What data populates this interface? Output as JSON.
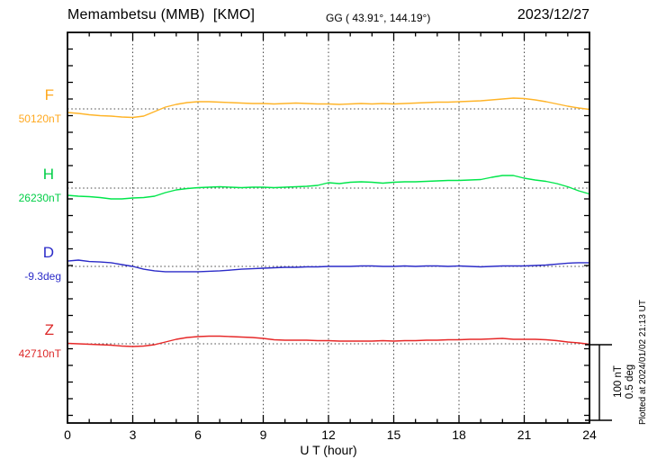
{
  "header": {
    "station_title": "Memambetsu (MMB)  [KMO]",
    "geographic_coords": "GG ( 43.91°, 144.19°)",
    "date": "2023/12/27"
  },
  "xaxis": {
    "label": "U T (hour)",
    "tick_values": [
      0,
      3,
      6,
      9,
      12,
      15,
      18,
      21,
      24
    ],
    "tick_labels": [
      "0",
      "3",
      "6",
      "9",
      "12",
      "15",
      "18",
      "21",
      "24"
    ],
    "min": 0,
    "max": 24
  },
  "scale_bar": {
    "line1": "100 nT",
    "line2": "0.5 deg"
  },
  "footer_note": "Plotted at 2024/01/02 21:13 UT",
  "components": [
    {
      "id": "F",
      "label": "F",
      "value_label": "50120nT",
      "color": "#FFA81E"
    },
    {
      "id": "H",
      "label": "H",
      "value_label": "26230nT",
      "color": "#00CE46"
    },
    {
      "id": "D",
      "label": "D",
      "value_label": "-9.3deg",
      "color": "#2B2BC8"
    },
    {
      "id": "Z",
      "label": "Z",
      "value_label": "42710nT",
      "color": "#DC2828"
    }
  ],
  "chart_data": {
    "type": "line",
    "title": "Memambetsu (MMB) [KMO] magnetogram, 2023/12/27",
    "xlabel": "U T (hour)",
    "xlim": [
      0,
      24
    ],
    "x_ticks": [
      0,
      3,
      6,
      9,
      12,
      15,
      18,
      21,
      24
    ],
    "grid": "vertical dotted every 3 h, dotted horizontal baseline per trace",
    "legend_position": "left margin labels",
    "scale": {
      "nT_per_division": 100,
      "deg_per_division": 0.5
    },
    "x": [
      0,
      0.5,
      1,
      1.5,
      2,
      2.5,
      3,
      3.5,
      4,
      4.5,
      5,
      5.5,
      6,
      6.5,
      7,
      7.5,
      8,
      8.5,
      9,
      9.5,
      10,
      10.5,
      11,
      11.5,
      12,
      12.5,
      13,
      13.5,
      14,
      14.5,
      15,
      15.5,
      16,
      16.5,
      17,
      17.5,
      18,
      18.5,
      19,
      19.5,
      20,
      20.5,
      21,
      21.5,
      22,
      22.5,
      23,
      23.5,
      24
    ],
    "series": [
      {
        "name": "F",
        "unit": "nT",
        "baseline_value": 50120,
        "baseline_label": "50120nT",
        "color": "#FFB428",
        "delta": [
          -4.7,
          -5.9,
          -7.6,
          -8.8,
          -9.4,
          -10.6,
          -11.2,
          -9.4,
          -3.5,
          2.4,
          5.9,
          8.2,
          9.4,
          9.4,
          8.8,
          8.2,
          7.6,
          7.1,
          7.1,
          6.5,
          7.1,
          7.6,
          7.1,
          6.5,
          6.5,
          5.9,
          6.5,
          7.1,
          6.5,
          7.1,
          6.5,
          7.1,
          7.6,
          8.2,
          8.8,
          8.8,
          9.4,
          10.0,
          10.6,
          11.8,
          12.9,
          14.1,
          13.5,
          11.8,
          9.4,
          6.5,
          3.5,
          1.2,
          -0.6
        ]
      },
      {
        "name": "H",
        "unit": "nT",
        "baseline_value": 26230,
        "baseline_label": "26230nT",
        "color": "#00E64B",
        "delta": [
          -9.4,
          -10.6,
          -11.2,
          -12.4,
          -14.1,
          -14.1,
          -12.9,
          -12.4,
          -10.6,
          -5.9,
          -2.4,
          -0.6,
          0.6,
          1.2,
          1.8,
          1.2,
          0.6,
          1.2,
          1.2,
          0.6,
          1.2,
          1.8,
          2.4,
          3.5,
          7.1,
          5.9,
          7.6,
          8.2,
          7.6,
          6.5,
          7.6,
          8.2,
          8.2,
          8.8,
          9.4,
          10.0,
          10.0,
          10.6,
          11.2,
          14.1,
          16.5,
          16.5,
          12.9,
          10.6,
          8.8,
          5.9,
          1.8,
          -3.5,
          -7.6
        ]
      },
      {
        "name": "D",
        "unit": "deg",
        "baseline_value": -9.3,
        "baseline_label": "-9.3deg",
        "color": "#2B2BC8",
        "delta": [
          0.035,
          0.041,
          0.032,
          0.029,
          0.024,
          0.012,
          0.0,
          -0.018,
          -0.029,
          -0.035,
          -0.035,
          -0.035,
          -0.035,
          -0.032,
          -0.029,
          -0.024,
          -0.018,
          -0.015,
          -0.012,
          -0.009,
          -0.006,
          -0.006,
          -0.003,
          -0.003,
          0.0,
          0.0,
          0.0,
          0.003,
          0.003,
          0.0,
          0.0,
          0.003,
          0.0,
          0.003,
          0.003,
          0.0,
          0.003,
          0.0,
          -0.003,
          0.0,
          0.003,
          0.003,
          0.003,
          0.006,
          0.009,
          0.015,
          0.021,
          0.024,
          0.024
        ]
      },
      {
        "name": "Z",
        "unit": "nT",
        "baseline_value": 42710,
        "baseline_label": "42710nT",
        "color": "#E62828",
        "delta": [
          0.6,
          0.0,
          -0.6,
          -1.2,
          -1.8,
          -2.9,
          -3.5,
          -2.9,
          -1.2,
          2.4,
          5.9,
          8.2,
          9.4,
          10.0,
          10.0,
          9.4,
          8.8,
          8.2,
          7.1,
          5.3,
          4.7,
          4.7,
          4.7,
          4.1,
          4.1,
          3.5,
          3.5,
          3.5,
          3.5,
          4.1,
          3.5,
          4.1,
          4.1,
          4.7,
          4.7,
          5.3,
          5.3,
          5.9,
          5.9,
          6.5,
          7.1,
          5.9,
          5.9,
          5.9,
          5.3,
          4.1,
          2.4,
          1.2,
          -0.6
        ]
      }
    ]
  }
}
